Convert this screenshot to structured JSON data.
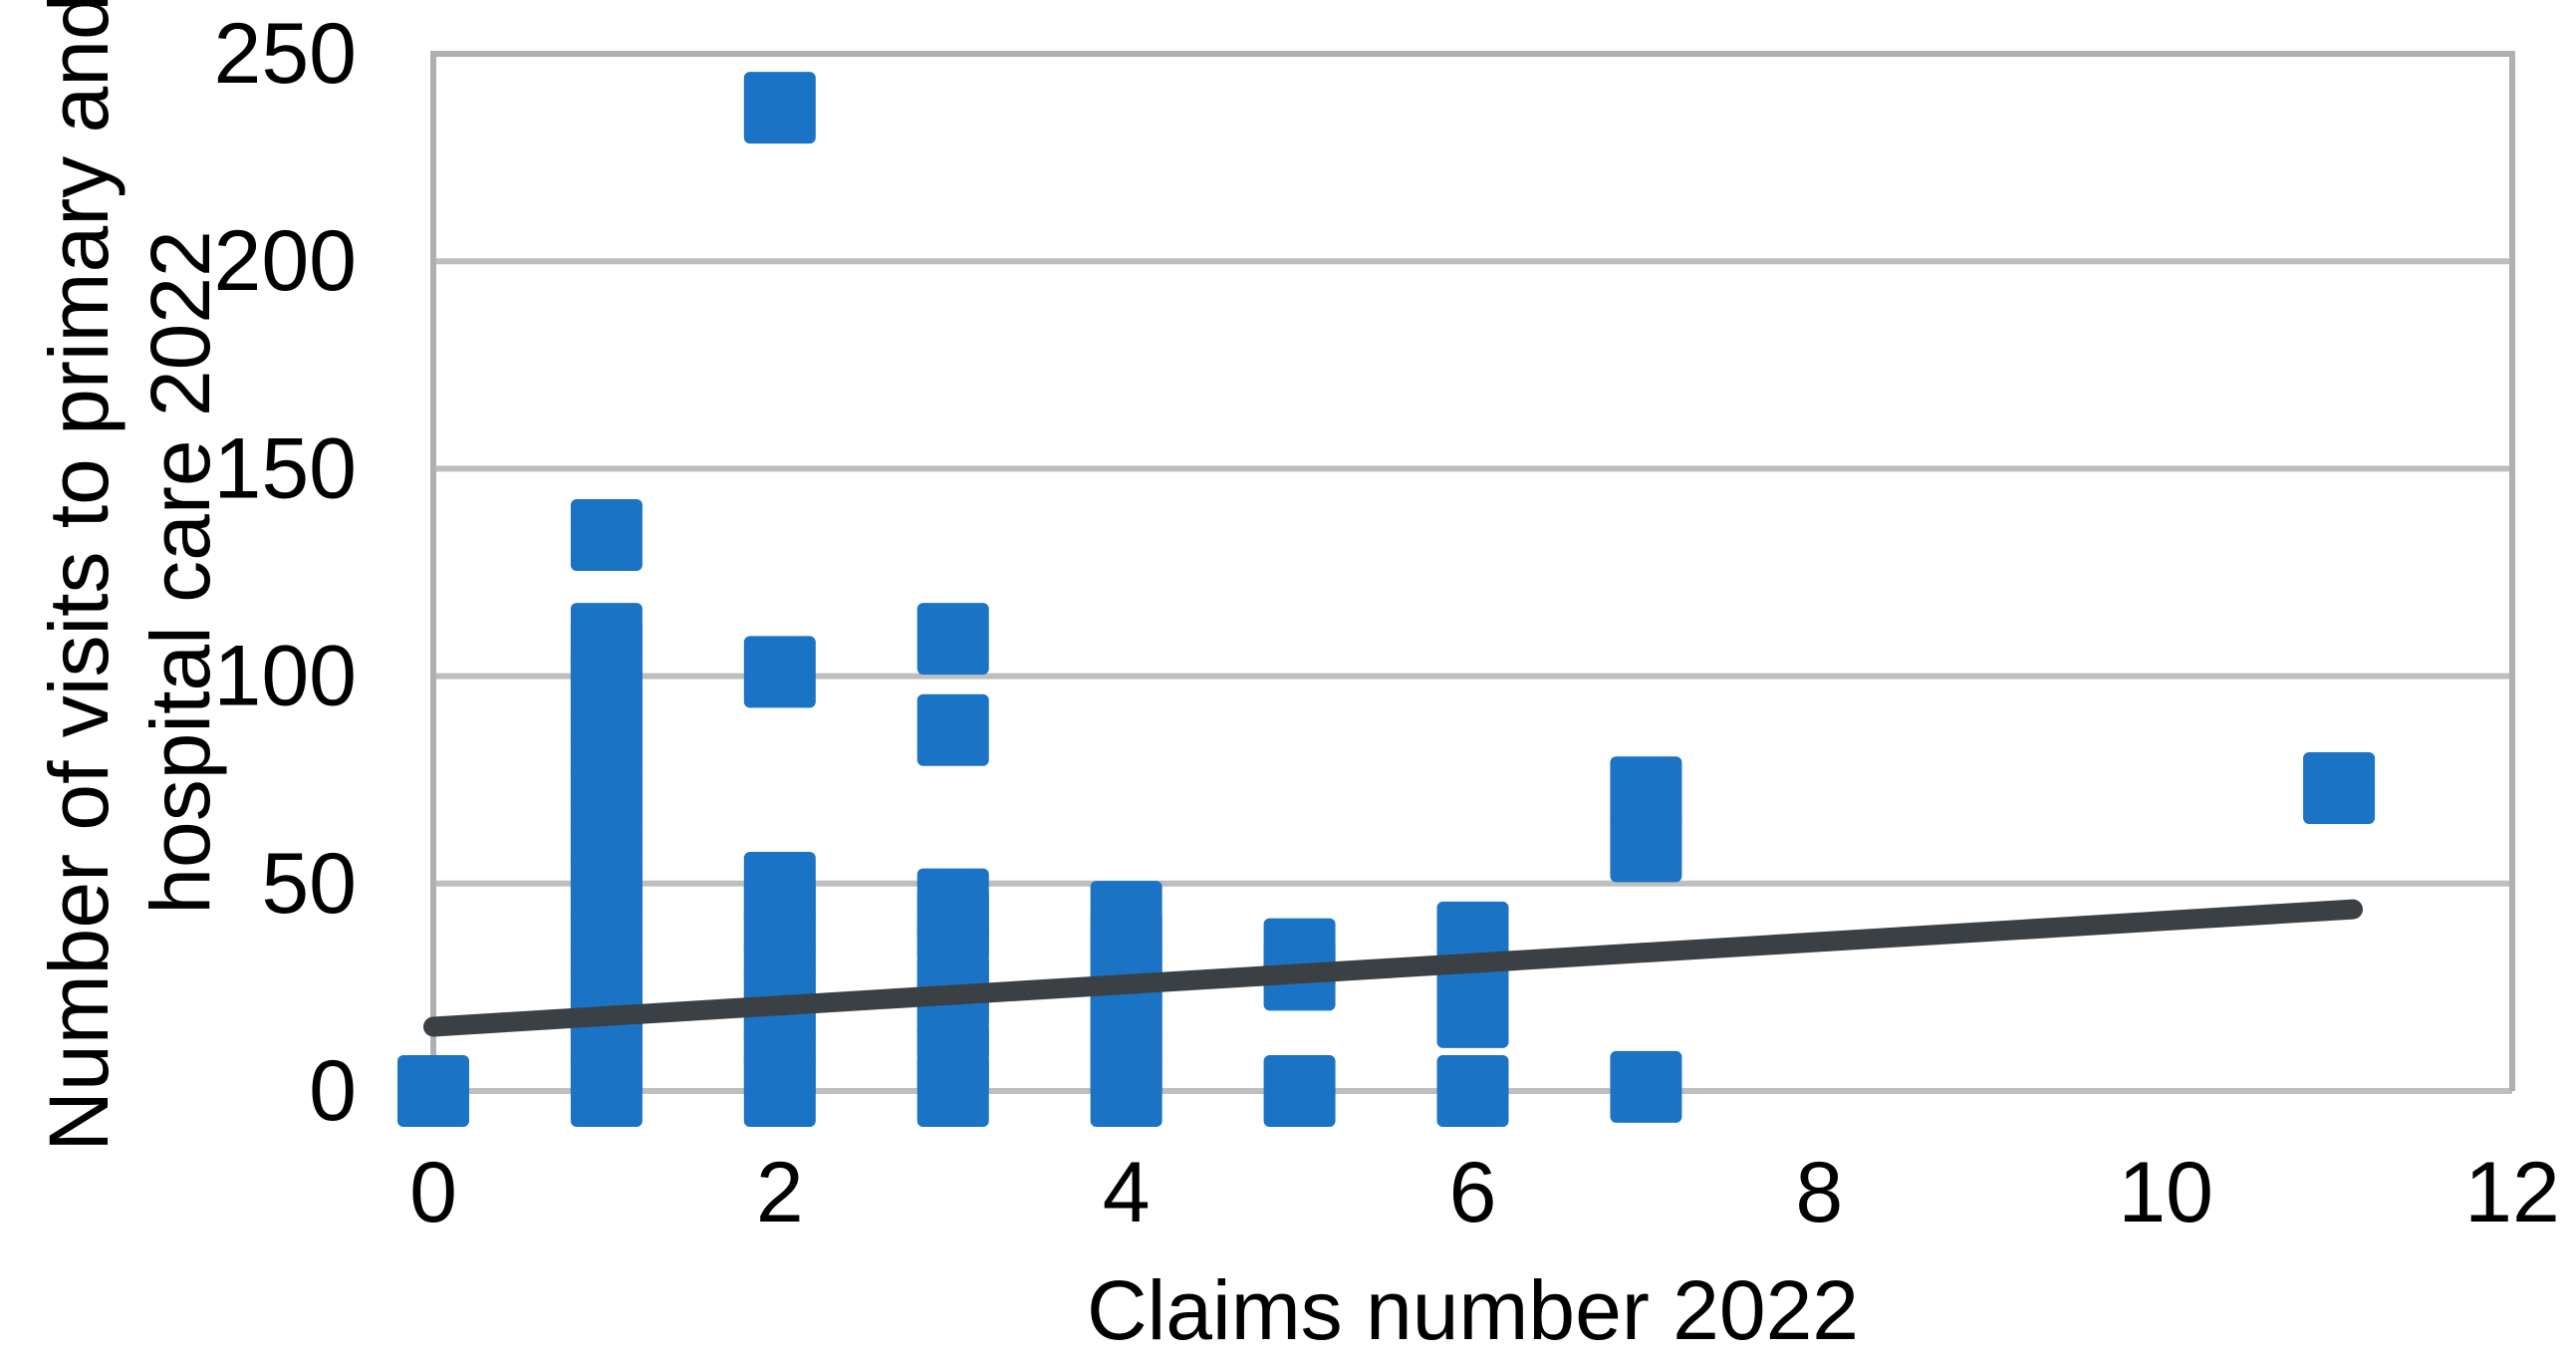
{
  "figure": {
    "background": "#FFFFFF",
    "y_axis": {
      "title_line1": "Number of visits to primary and",
      "title_line2": "hospital care 2022",
      "tick_labels": [
        "0",
        "50",
        "100",
        "150",
        "200",
        "250"
      ],
      "ticks": [
        0,
        50,
        100,
        150,
        200,
        250
      ],
      "min": 0,
      "max": 250
    },
    "x_axis": {
      "title": "Claims number 2022",
      "tick_labels": [
        "0",
        "2",
        "4",
        "6",
        "8",
        "10",
        "12"
      ],
      "ticks": [
        0,
        2,
        4,
        6,
        8,
        10,
        12
      ],
      "min": 0,
      "max": 12
    },
    "colors": {
      "marker": "#1B73C5",
      "trend": "#3B4045",
      "grid": "#BEBEBE",
      "axis": "#B0B0B0",
      "text": "#000000"
    }
  },
  "chart_data": {
    "type": "scatter",
    "title": "",
    "xlabel": "Claims number 2022",
    "ylabel": "Number of visits to primary and hospital care 2022",
    "xlim": [
      0,
      12
    ],
    "ylim": [
      0,
      250
    ],
    "grid": true,
    "legend": false,
    "marker_shape": "square",
    "points": [
      {
        "x": 0,
        "y": 0
      },
      {
        "x": 1,
        "y": 0
      },
      {
        "x": 1,
        "y": 7
      },
      {
        "x": 1,
        "y": 14
      },
      {
        "x": 1,
        "y": 21
      },
      {
        "x": 1,
        "y": 28
      },
      {
        "x": 1,
        "y": 35
      },
      {
        "x": 1,
        "y": 42
      },
      {
        "x": 1,
        "y": 49
      },
      {
        "x": 1,
        "y": 56
      },
      {
        "x": 1,
        "y": 63
      },
      {
        "x": 1,
        "y": 70
      },
      {
        "x": 1,
        "y": 77
      },
      {
        "x": 1,
        "y": 84
      },
      {
        "x": 1,
        "y": 91
      },
      {
        "x": 1,
        "y": 98
      },
      {
        "x": 1,
        "y": 105
      },
      {
        "x": 1,
        "y": 109
      },
      {
        "x": 1,
        "y": 134
      },
      {
        "x": 2,
        "y": 0
      },
      {
        "x": 2,
        "y": 7
      },
      {
        "x": 2,
        "y": 14
      },
      {
        "x": 2,
        "y": 21
      },
      {
        "x": 2,
        "y": 28
      },
      {
        "x": 2,
        "y": 35
      },
      {
        "x": 2,
        "y": 42
      },
      {
        "x": 2,
        "y": 49
      },
      {
        "x": 2,
        "y": 101
      },
      {
        "x": 2,
        "y": 237
      },
      {
        "x": 3,
        "y": 0
      },
      {
        "x": 3,
        "y": 8
      },
      {
        "x": 3,
        "y": 16
      },
      {
        "x": 3,
        "y": 24
      },
      {
        "x": 3,
        "y": 32
      },
      {
        "x": 3,
        "y": 40
      },
      {
        "x": 3,
        "y": 45
      },
      {
        "x": 3,
        "y": 87
      },
      {
        "x": 3,
        "y": 109
      },
      {
        "x": 4,
        "y": 0
      },
      {
        "x": 4,
        "y": 7
      },
      {
        "x": 4,
        "y": 14
      },
      {
        "x": 4,
        "y": 21
      },
      {
        "x": 4,
        "y": 28
      },
      {
        "x": 4,
        "y": 35
      },
      {
        "x": 4,
        "y": 42
      },
      {
        "x": 5,
        "y": 0
      },
      {
        "x": 5,
        "y": 28
      },
      {
        "x": 5,
        "y": 33
      },
      {
        "x": 6,
        "y": 0
      },
      {
        "x": 6,
        "y": 19
      },
      {
        "x": 6,
        "y": 28
      },
      {
        "x": 6,
        "y": 37
      },
      {
        "x": 7,
        "y": 1
      },
      {
        "x": 7,
        "y": 59
      },
      {
        "x": 7,
        "y": 72
      },
      {
        "x": 11,
        "y": 73
      }
    ],
    "trend_line": {
      "x_start": 0,
      "y_start": 15.5,
      "x_end": 11.08,
      "y_end": 43.8
    }
  }
}
